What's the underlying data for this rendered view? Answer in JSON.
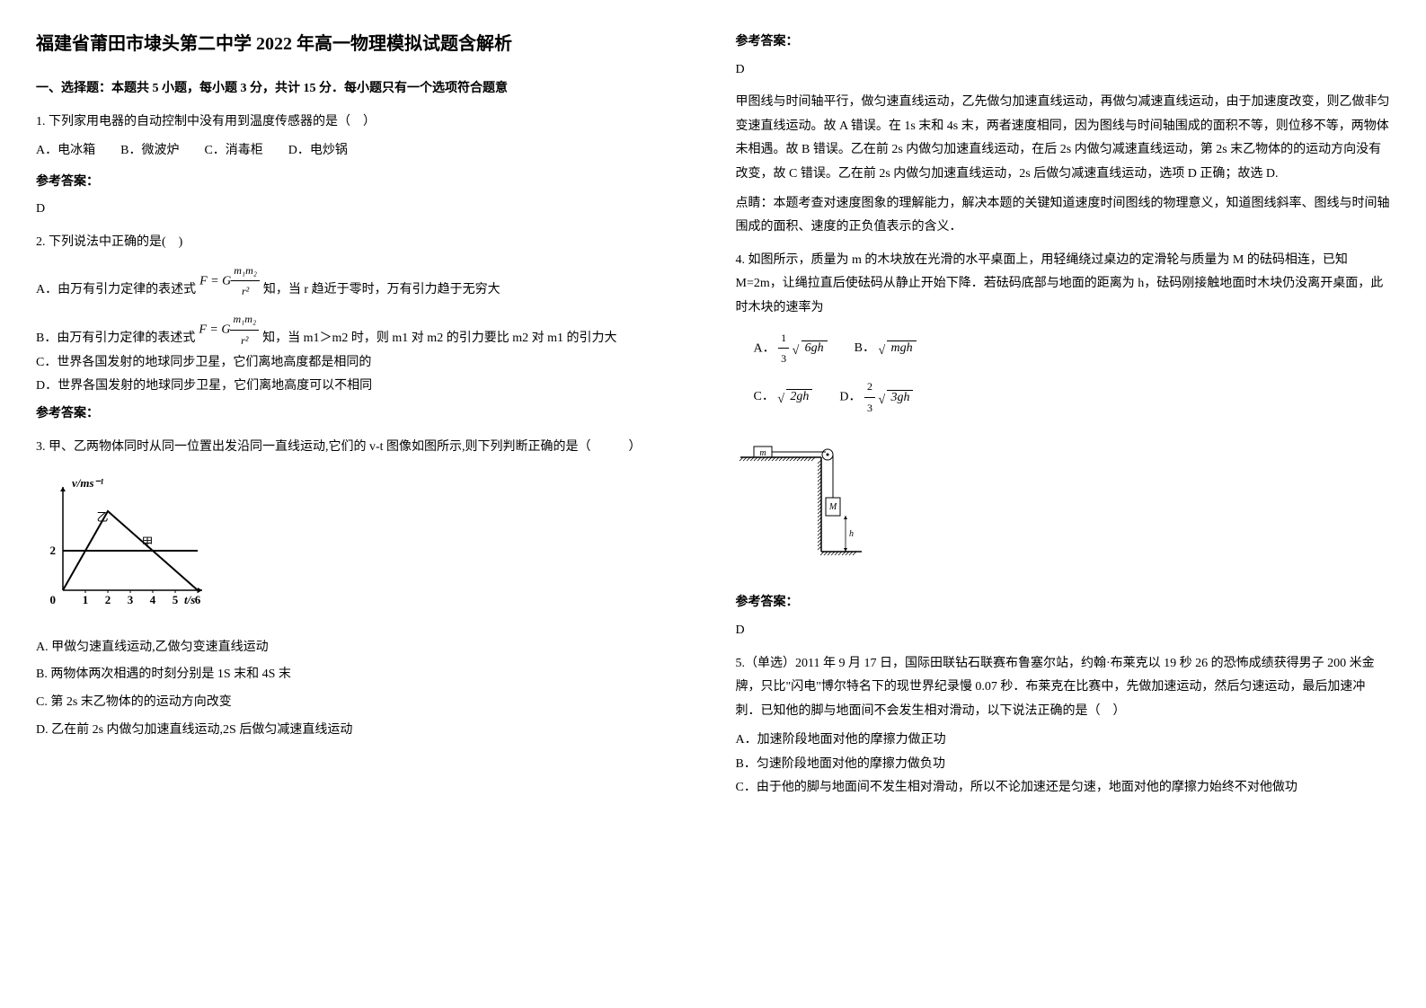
{
  "title": "福建省莆田市埭头第二中学 2022 年高一物理模拟试题含解析",
  "section1_header": "一、选择题：本题共 5 小题，每小题 3 分，共计 15 分．每小题只有一个选项符合题意",
  "q1": {
    "text": "1. 下列家用电器的自动控制中没有用到温度传感器的是（　）",
    "options": "A．电冰箱　　B．微波炉　　C．消毒柜　　D．电炒锅",
    "answer_label": "参考答案：",
    "answer": "D"
  },
  "q2": {
    "text": "2. 下列说法中正确的是(　)",
    "optA_pre": "A．由万有引力定律的表述式",
    "optA_post": "知，当 r 趋近于零时，万有引力趋于无穷大",
    "optB_pre": "B．由万有引力定律的表述式",
    "optB_post": "知，当 m1＞m2 时，则 m1 对 m2 的引力要比 m2 对 m1 的引力大",
    "optC": "C．世界各国发射的地球同步卫星，它们离地高度都是相同的",
    "optD": "D．世界各国发射的地球同步卫星，它们离地高度可以不相同",
    "answer_label": "参考答案："
  },
  "q3": {
    "text": "3. 甲、乙两物体同时从同一位置出发沿同一直线运动,它们的 v-t 图像如图所示,则下列判断正确的是（　　　）",
    "optA": "A. 甲做匀速直线运动,乙做匀变速直线运动",
    "optB": "B. 两物体两次相遇的时刻分别是 1S 末和 4S 末",
    "optC": "C. 第 2s 末乙物体的的运动方向改变",
    "optD": "D. 乙在前 2s 内做匀加速直线运动,2S 后做匀减速直线运动",
    "chart": {
      "ylabel": "v/ms⁻¹",
      "xlabel": "t/s",
      "x_ticks": [
        "1",
        "2",
        "3",
        "4",
        "5",
        "6"
      ],
      "y_ticks": [
        "2"
      ],
      "line_jia_label": "甲",
      "line_yi_label": "乙",
      "jia_value": 2,
      "yi_points": [
        [
          0,
          0
        ],
        [
          2,
          4
        ],
        [
          6,
          0
        ]
      ],
      "axis_color": "#000000",
      "line_color": "#000000",
      "background": "#ffffff",
      "font_size": 13
    }
  },
  "q3_answer": {
    "answer_label": "参考答案：",
    "answer": "D",
    "explain": "甲图线与时间轴平行，做匀速直线运动，乙先做匀加速直线运动，再做匀减速直线运动，由于加速度改变，则乙做非匀变速直线运动。故 A 错误。在 1s 末和 4s 末，两者速度相同，因为图线与时间轴围成的面积不等，则位移不等，两物体未相遇。故 B 错误。乙在前 2s 内做匀加速直线运动，在后 2s 内做匀减速直线运动，第 2s 末乙物体的的运动方向没有改变，故 C 错误。乙在前 2s 内做匀加速直线运动，2s 后做匀减速直线运动，选项 D 正确；故选 D.",
    "hint": "点睛：本题考查对速度图象的理解能力，解决本题的关键知道速度时间图线的物理意义，知道图线斜率、图线与时间轴围成的面积、速度的正负值表示的含义．"
  },
  "q4": {
    "text": "4. 如图所示，质量为 m 的木块放在光滑的水平桌面上，用轻绳绕过桌边的定滑轮与质量为 M 的砝码相连，已知 M=2m，让绳拉直后使砝码从静止开始下降．若砝码底部与地面的距离为 h，砝码刚接触地面时木块仍没离开桌面，此时木块的速率为",
    "optA_pre": "A．",
    "optA_frac_num": "1",
    "optA_frac_den": "3",
    "optA_sqrt": "6gh",
    "optB_pre": "B．",
    "optB_sqrt": "mgh",
    "optC_pre": "C．",
    "optC_sqrt": "2gh",
    "optD_pre": "D．",
    "optD_frac_num": "2",
    "optD_frac_den": "3",
    "optD_sqrt": "3gh",
    "diagram": {
      "m_label": "m",
      "M_label": "M",
      "h_label": "h",
      "line_color": "#000000",
      "hatch_spacing": 4
    },
    "answer_label": "参考答案：",
    "answer": "D"
  },
  "q5": {
    "text": "5.（单选）2011 年 9 月 17 日，国际田联钻石联赛布鲁塞尔站，约翰·布莱克以 19 秒 26 的恐怖成绩获得男子 200 米金牌，只比\"闪电\"博尔特名下的现世界纪录慢 0.07 秒．布莱克在比赛中，先做加速运动，然后匀速运动，最后加速冲刺．已知他的脚与地面间不会发生相对滑动，以下说法正确的是（　）",
    "optA": "A．加速阶段地面对他的摩擦力做正功",
    "optB": "B．匀速阶段地面对他的摩擦力做负功",
    "optC": "C．由于他的脚与地面间不发生相对滑动，所以不论加速还是匀速，地面对他的摩擦力始终不对他做功"
  }
}
